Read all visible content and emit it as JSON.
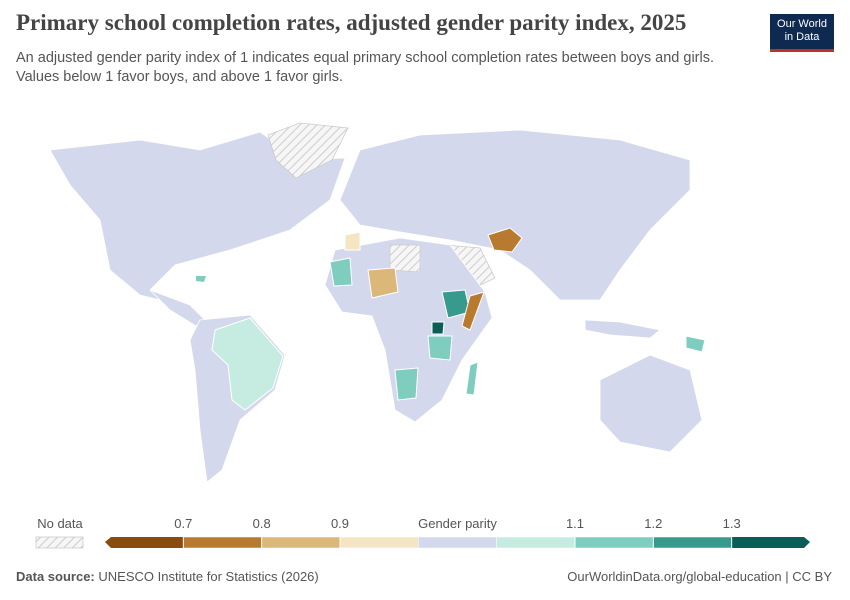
{
  "header": {
    "title": "Primary school completion rates, adjusted gender parity index, 2025",
    "subtitle_lines": [
      "An adjusted gender parity index of 1 indicates equal primary school completion rates between boys and girls.",
      "Values below 1 favor boys, and above 1 favor girls."
    ]
  },
  "logo": [
    "Our World",
    "in Data"
  ],
  "legend": {
    "no_data_label": "No data",
    "ticks": [
      0.7,
      0.8,
      0.9,
      {
        "value": 1,
        "label": "Gender parity"
      },
      1.1,
      1.2,
      1.3
    ],
    "colors": [
      "#8a4b0f",
      "#b87a2e",
      "#dcb77a",
      "#f5e6c3",
      "#d4d8ec",
      "#c6ebe1",
      "#7fcdbf",
      "#389a8d",
      "#0b5e57"
    ]
  },
  "footer": {
    "source_label": "Data source:",
    "source": "UNESCO Institute for Statistics (2026)",
    "link": "OurWorldinData.org/global-education | CC BY"
  }
}
